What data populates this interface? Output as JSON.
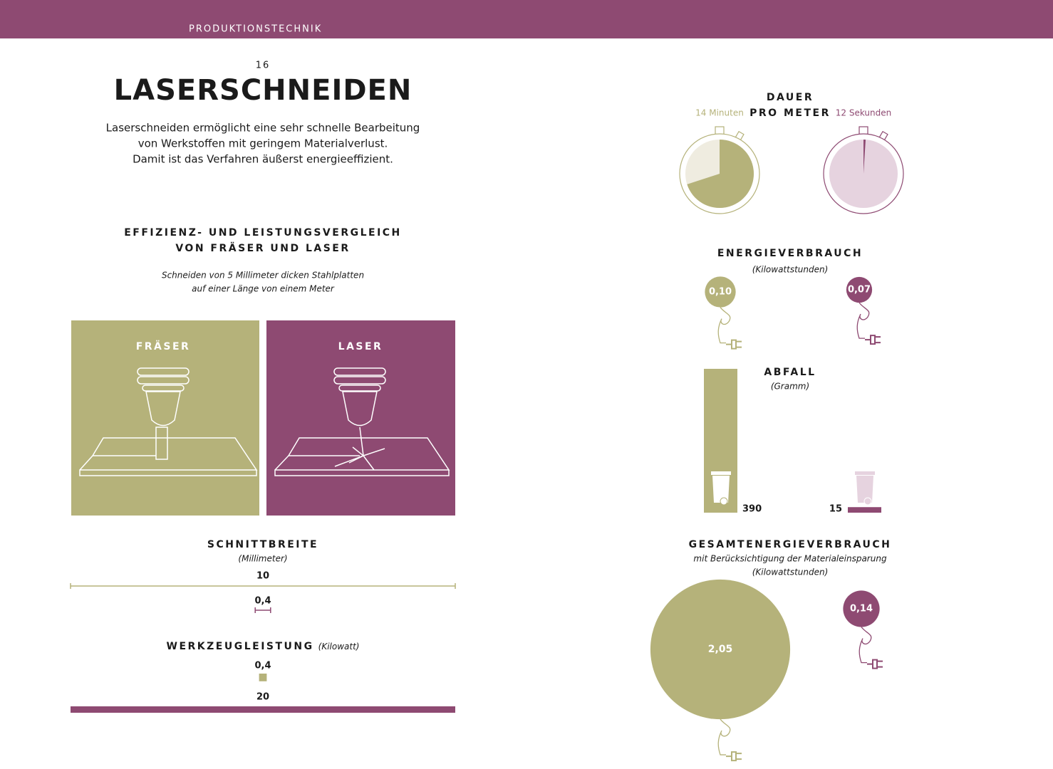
{
  "header": {
    "section": "PRODUKTIONSTECHNIK"
  },
  "page_number": "16",
  "title": "LASERSCHNEIDEN",
  "intro": [
    "Laserschneiden ermöglicht eine sehr schnelle Bearbeitung",
    "von Werkstoffen mit geringem Materialverlust.",
    "Damit ist das Verfahren äußerst energieeffizient."
  ],
  "comparison": {
    "title": [
      "EFFIZIENZ- UND LEISTUNGSVERGLEICH",
      "VON FRÄSER UND LASER"
    ],
    "subtitle": [
      "Schneiden von 5 Millimeter dicken Stahlplatten",
      "auf einer Länge von einem Meter"
    ],
    "panels": [
      "FRÄSER",
      "LASER"
    ]
  },
  "schnittbreite": {
    "title": "SCHNITTBREITE",
    "unit": "(Millimeter)",
    "fraeser": {
      "value": 10,
      "label": "10"
    },
    "laser": {
      "value": 0.4,
      "label": "0,4"
    }
  },
  "werkzeugleistung": {
    "title": "WERKZEUGLEISTUNG",
    "unit": "(Kilowatt)",
    "fraeser": {
      "value": 0.4,
      "label": "0,4"
    },
    "laser": {
      "value": 20,
      "label": "20"
    }
  },
  "dauer": {
    "title": [
      "DAUER",
      "PRO METER"
    ],
    "fraeser": {
      "value": 14,
      "label": "14 Minuten"
    },
    "laser": {
      "value": 0.2,
      "label": "12 Sekunden"
    }
  },
  "energieverbrauch": {
    "title": "ENERGIEVERBRAUCH",
    "unit": "(Kilowattstunden)",
    "fraeser": {
      "value": 0.1,
      "label": "0,10"
    },
    "laser": {
      "value": 0.07,
      "label": "0,07"
    }
  },
  "abfall": {
    "title": "ABFALL",
    "unit": "(Gramm)",
    "fraeser": {
      "value": 390,
      "label": "390"
    },
    "laser": {
      "value": 15,
      "label": "15"
    }
  },
  "gesamtenergieverbrauch": {
    "title": "GESAMTENERGIEVERBRAUCH",
    "subtitle": "mit Berücksichtigung der Materialeinsparung",
    "unit": "(Kilowattstunden)",
    "fraeser": {
      "value": 2.05,
      "label": "2,05"
    },
    "laser": {
      "value": 0.14,
      "label": "0,14"
    }
  }
}
